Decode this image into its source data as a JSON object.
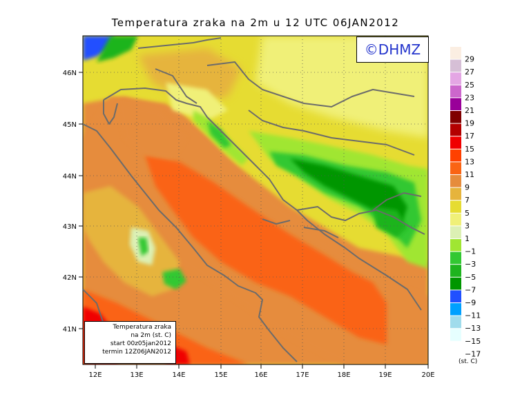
{
  "title": "Temperatura zraka na 2m u 12 UTC 06JAN2012",
  "copyright": "©DHMZ",
  "info_box": {
    "line1": "Temperatura zraka",
    "line2": "na 2m (st. C)",
    "line3": "start 00z05jan2012",
    "line4": "termin 12Z06JAN2012"
  },
  "axes": {
    "lon_labels": [
      "12E",
      "13E",
      "14E",
      "15E",
      "16E",
      "17E",
      "18E",
      "19E",
      "20E"
    ],
    "lat_labels": [
      "41N",
      "42N",
      "43N",
      "44N",
      "45N",
      "46N"
    ]
  },
  "legend": {
    "units": "(st. C)",
    "bins": [
      {
        "label": "29",
        "color": "#fbeee2"
      },
      {
        "label": "27",
        "color": "#d6bfd6"
      },
      {
        "label": "25",
        "color": "#e4a6e4"
      },
      {
        "label": "23",
        "color": "#cc66cc"
      },
      {
        "label": "21",
        "color": "#990099"
      },
      {
        "label": "19",
        "color": "#800000"
      },
      {
        "label": "17",
        "color": "#b40000"
      },
      {
        "label": "15",
        "color": "#f00000"
      },
      {
        "label": "13",
        "color": "#ff4000"
      },
      {
        "label": "11",
        "color": "#fa6414"
      },
      {
        "label": "9",
        "color": "#e68c3c"
      },
      {
        "label": "7",
        "color": "#e6b43c"
      },
      {
        "label": "5",
        "color": "#e6dc32"
      },
      {
        "label": "3",
        "color": "#f0f078"
      },
      {
        "label": "1",
        "color": "#dcf0b4"
      },
      {
        "label": "−1",
        "color": "#a0e632"
      },
      {
        "label": "−3",
        "color": "#32c832"
      },
      {
        "label": "−5",
        "color": "#1eb41e"
      },
      {
        "label": "−7",
        "color": "#009600"
      },
      {
        "label": "−9",
        "color": "#2050ff"
      },
      {
        "label": "−11",
        "color": "#00a0ff"
      },
      {
        "label": "−13",
        "color": "#a0dcec"
      },
      {
        "label": "−15",
        "color": "#e6ffff"
      },
      {
        "label": "−17",
        "color": "#ffffff"
      }
    ]
  }
}
